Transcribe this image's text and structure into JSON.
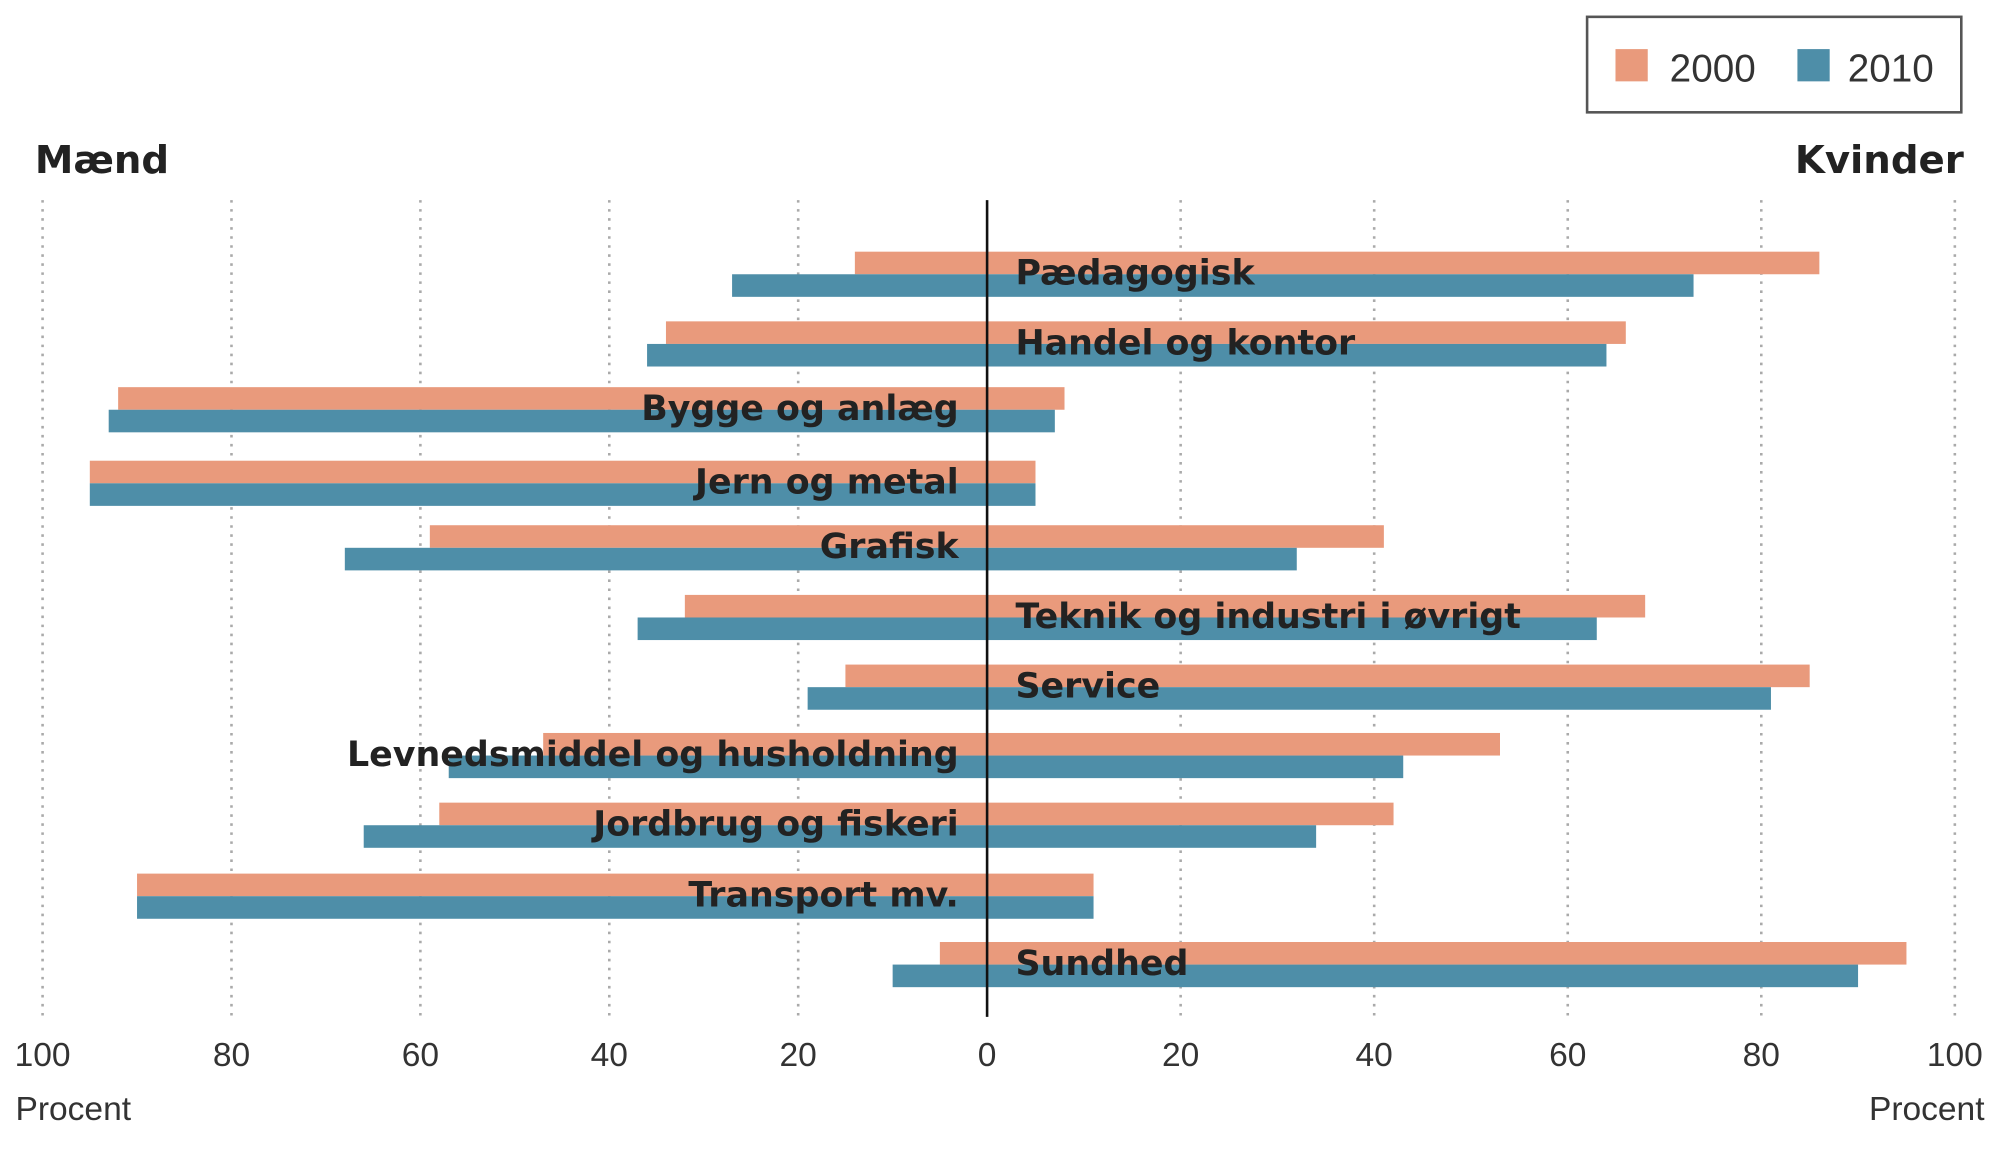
{
  "chart_data": {
    "type": "bar",
    "orientation": "horizontal",
    "layout": "diverging",
    "left_label": "Mænd",
    "right_label": "Kvinder",
    "xlabel_left": "Procent",
    "xlabel_right": "Procent",
    "xlim_left": [
      0,
      100
    ],
    "xlim_right": [
      0,
      100
    ],
    "xticks": [
      100,
      80,
      60,
      40,
      20,
      0,
      20,
      40,
      60,
      80,
      100
    ],
    "grid": true,
    "legend_position": "top-right",
    "categories": [
      "Pædagogisk",
      "Handel og kontor",
      "Bygge og anlæg",
      "Jern og metal",
      "Grafisk",
      "Teknik og industri i øvrigt",
      "Service",
      "Levnedsmiddel og husholdning",
      "Jordbrug og fiskeri",
      "Transport mv.",
      "Sundhed"
    ],
    "series": [
      {
        "name": "2000",
        "color": "#e99a7c",
        "men": [
          14,
          34,
          92,
          95,
          59,
          32,
          15,
          47,
          58,
          90,
          5
        ],
        "women": [
          86,
          66,
          8,
          5,
          41,
          68,
          85,
          53,
          42,
          11,
          95
        ]
      },
      {
        "name": "2010",
        "color": "#4e8ea8",
        "men": [
          27,
          36,
          93,
          95,
          68,
          37,
          19,
          57,
          66,
          90,
          10
        ],
        "women": [
          73,
          64,
          7,
          5,
          32,
          63,
          81,
          43,
          34,
          11,
          90
        ]
      }
    ]
  }
}
